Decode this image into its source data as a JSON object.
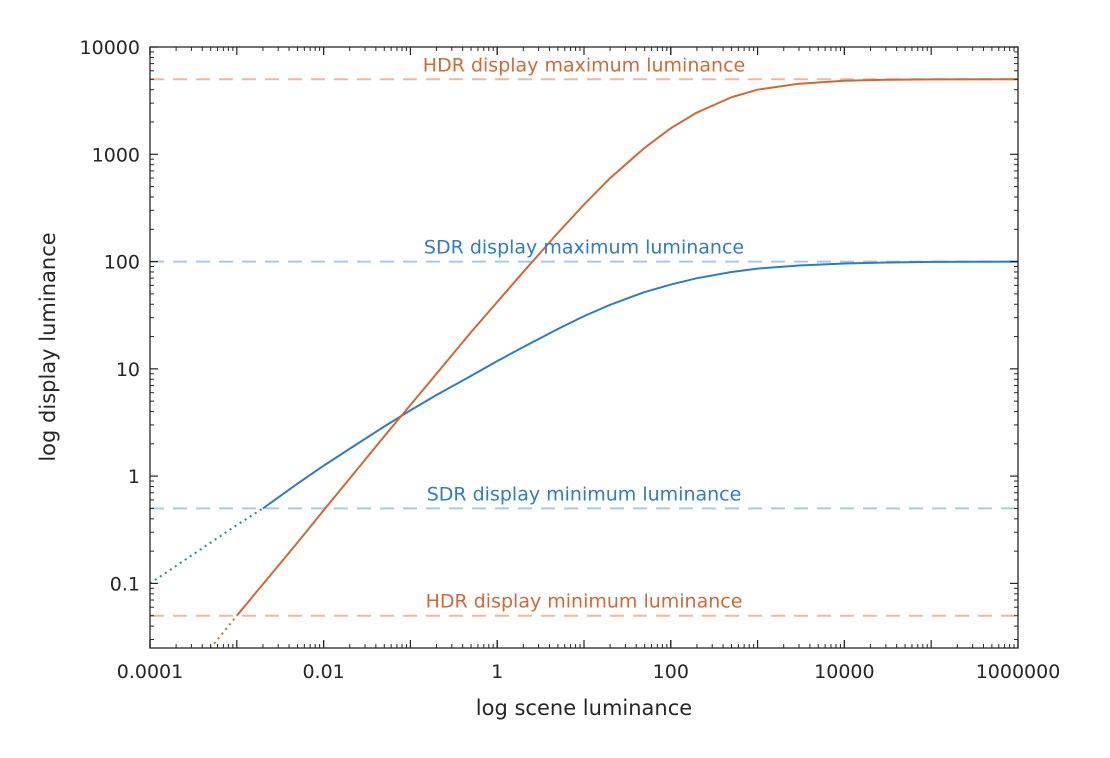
{
  "chart_data": {
    "type": "line",
    "title": "",
    "xlabel": "log scene luminance",
    "ylabel": "log display luminance",
    "x_scale": "log",
    "y_scale": "log",
    "xlim": [
      0.0001,
      1000000
    ],
    "ylim": [
      0.025,
      10000
    ],
    "x_ticks": [
      0.0001,
      0.01,
      1,
      100,
      10000,
      1000000
    ],
    "x_tick_labels": [
      "0.0001",
      "0.01",
      "1",
      "100",
      "10000",
      "1000000"
    ],
    "y_ticks": [
      0.1,
      1,
      10,
      100,
      1000,
      10000
    ],
    "y_tick_labels": [
      "0.1",
      "1",
      "10",
      "100",
      "1000",
      "10000"
    ],
    "grid": false,
    "colors": {
      "sdr": "#2e7dbd",
      "hdr": "#cf6a35",
      "sdr_dash": "#a9c9e6",
      "hdr_dash": "#efb8a0"
    },
    "series": [
      {
        "key": "sdr",
        "x": [
          0.0001,
          0.001,
          0.002,
          0.005,
          0.01,
          0.02,
          0.05,
          0.1,
          0.2,
          0.5,
          1,
          2,
          5,
          10,
          20,
          50,
          100,
          200,
          500,
          1000,
          3000,
          10000,
          30000,
          100000,
          1000000
        ],
        "y": [
          0.1,
          0.35,
          0.5,
          0.85,
          1.25,
          1.8,
          2.9,
          4.1,
          5.7,
          8.6,
          11.8,
          16,
          23.5,
          31,
          39.5,
          52,
          61,
          70,
          80,
          86,
          92,
          96,
          98,
          99.3,
          100
        ],
        "clip_min": 0.5
      },
      {
        "key": "hdr",
        "x": [
          0.0001,
          0.0005,
          0.001,
          0.005,
          0.01,
          0.02,
          0.05,
          0.1,
          0.2,
          0.5,
          1,
          2,
          5,
          10,
          20,
          50,
          100,
          200,
          500,
          1000,
          3000,
          10000,
          30000,
          100000,
          1000000
        ],
        "y": [
          0.005,
          0.025,
          0.05,
          0.24,
          0.48,
          0.95,
          2.35,
          4.6,
          9,
          22,
          42,
          80,
          185,
          340,
          600,
          1150,
          1750,
          2450,
          3400,
          4000,
          4550,
          4850,
          4950,
          4990,
          5000
        ],
        "clip_min": 0.05
      }
    ],
    "reference_lines": [
      {
        "key": "hdr_dash",
        "y": 5000,
        "label": "HDR display maximum luminance"
      },
      {
        "key": "sdr_dash",
        "y": 100,
        "label": "SDR display maximum luminance"
      },
      {
        "key": "sdr_dash",
        "y": 0.5,
        "label": "SDR display minimum luminance"
      },
      {
        "key": "hdr_dash",
        "y": 0.05,
        "label": "HDR display minimum luminance"
      }
    ]
  }
}
